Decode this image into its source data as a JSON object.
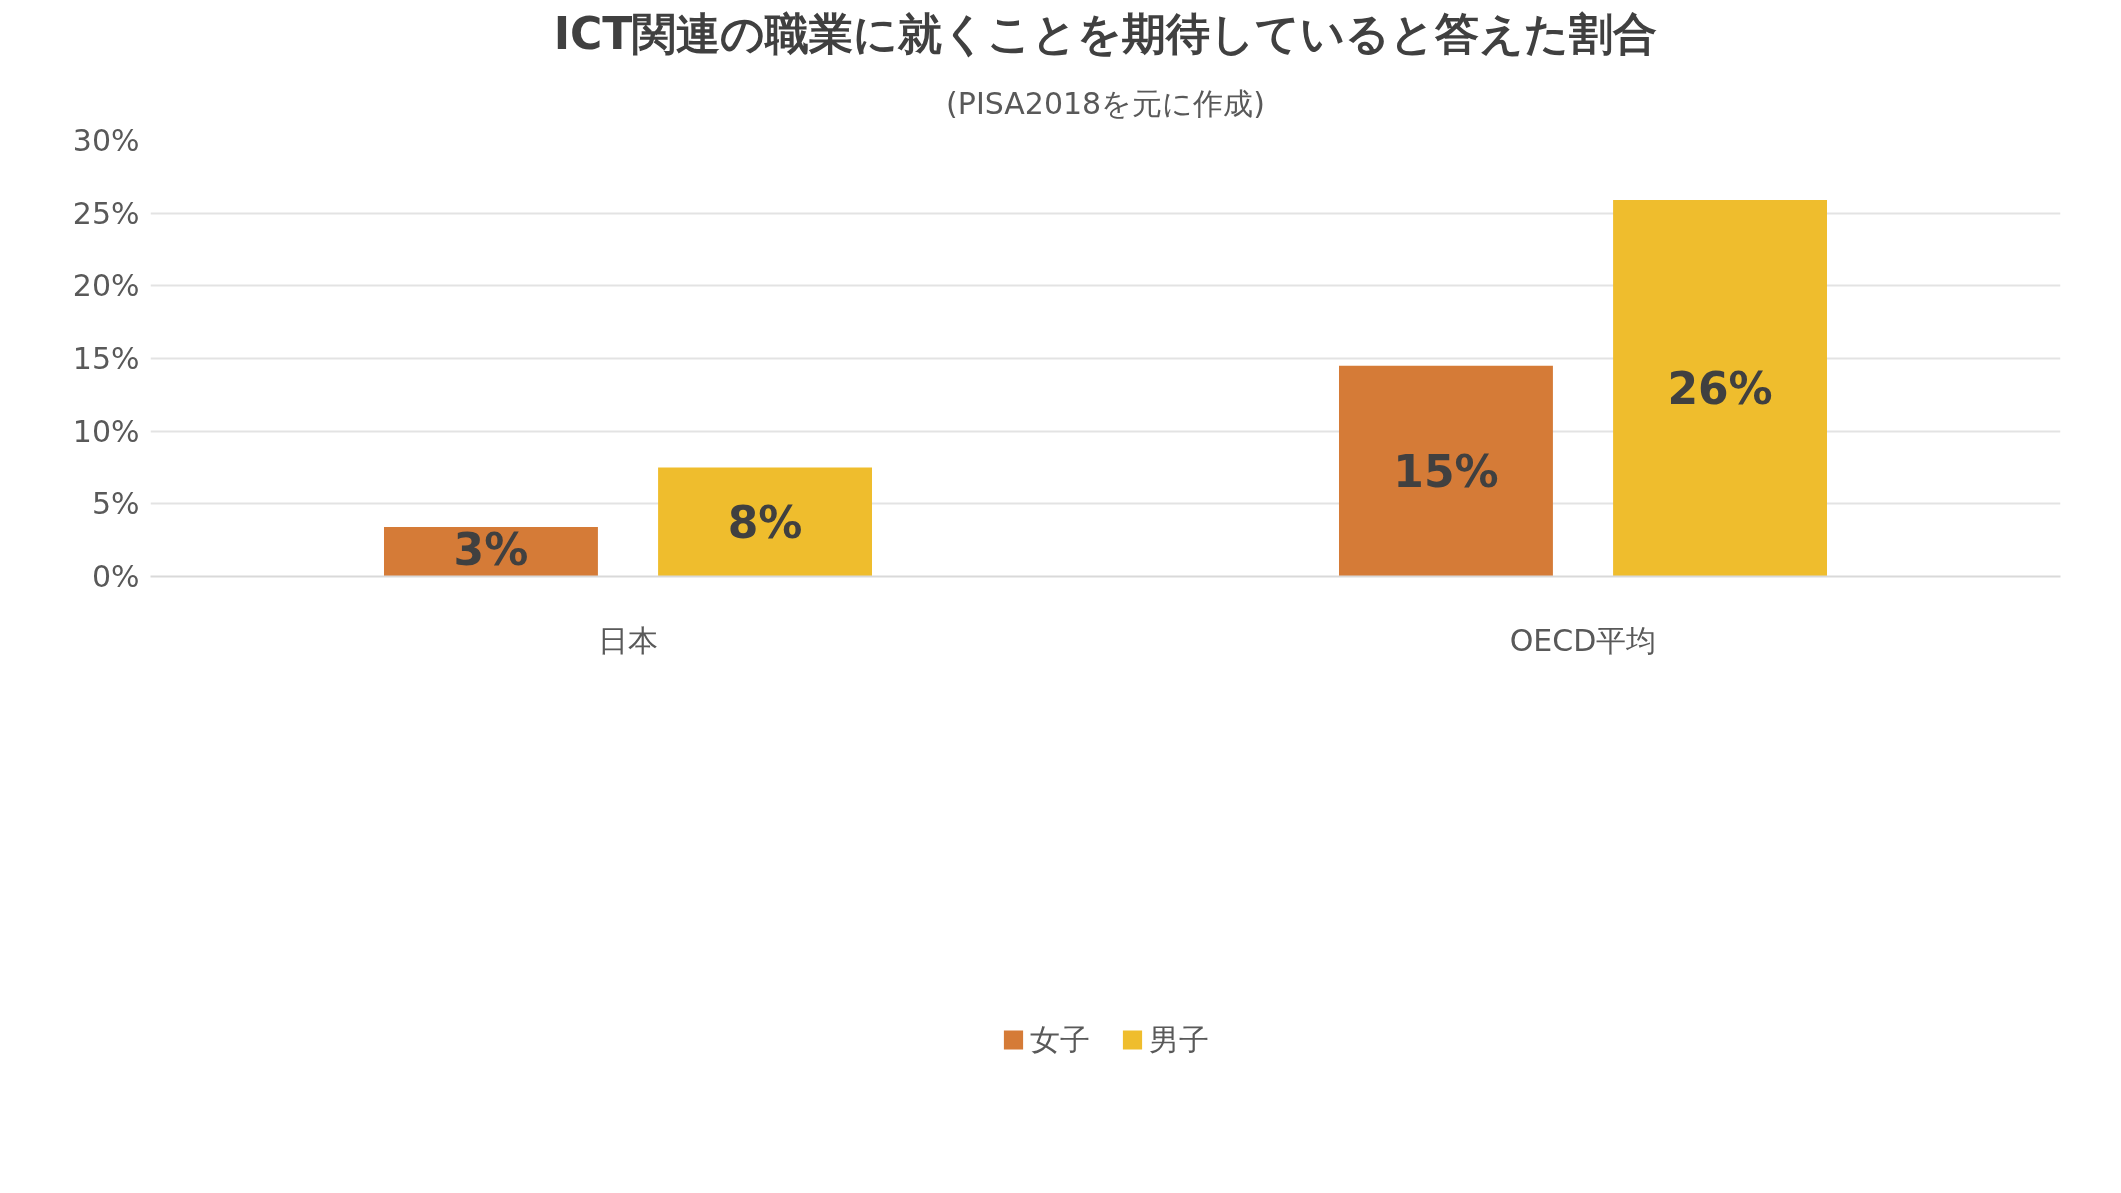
{
  "chart_data": {
    "type": "bar",
    "title": "ICT関連の職業に就くことを期待していると答えた割合",
    "subtitle": "(PISA2018を元に作成)",
    "categories": [
      "日本",
      "OECD平均"
    ],
    "series": [
      {
        "name": "女子",
        "color": "#d57b37",
        "values": [
          3.4,
          14.5
        ],
        "value_labels": [
          "3%",
          "15%"
        ]
      },
      {
        "name": "男子",
        "color": "#efbd2d",
        "values": [
          7.5,
          25.9
        ],
        "value_labels": [
          "8%",
          "26%"
        ]
      }
    ],
    "ylim": [
      0,
      30
    ],
    "yticks": [
      {
        "value": 0,
        "label": "0%"
      },
      {
        "value": 5,
        "label": "5%"
      },
      {
        "value": 10,
        "label": "10%"
      },
      {
        "value": 15,
        "label": "15%"
      },
      {
        "value": 20,
        "label": "20%"
      },
      {
        "value": 25,
        "label": "25%"
      },
      {
        "value": 30,
        "label": "30%"
      }
    ],
    "grid": "y",
    "legend": "bottom"
  }
}
